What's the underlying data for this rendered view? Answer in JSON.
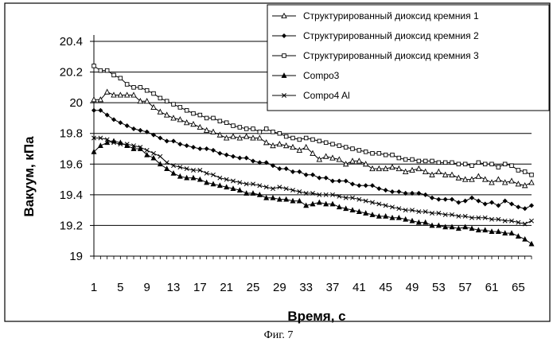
{
  "caption": "Фиг. 7",
  "chart_data": {
    "type": "line",
    "title": "",
    "xlabel": "Время, с",
    "ylabel": "Вакуум, кПа",
    "ylim": [
      19,
      20.4
    ],
    "yticks": [
      "19",
      "19.2",
      "19.4",
      "19.6",
      "19.8",
      "20",
      "20.2",
      "20.4"
    ],
    "xtick_labels": [
      "1",
      "5",
      "9",
      "13",
      "17",
      "21",
      "25",
      "29",
      "33",
      "37",
      "41",
      "45",
      "49",
      "53",
      "57",
      "61",
      "65"
    ],
    "grid": "horizontal",
    "legend_position": "top-right",
    "x": [
      1,
      2,
      3,
      4,
      5,
      6,
      7,
      8,
      9,
      10,
      11,
      12,
      13,
      14,
      15,
      16,
      17,
      18,
      19,
      20,
      21,
      22,
      23,
      24,
      25,
      26,
      27,
      28,
      29,
      30,
      31,
      32,
      33,
      34,
      35,
      36,
      37,
      38,
      39,
      40,
      41,
      42,
      43,
      44,
      45,
      46,
      47,
      48,
      49,
      50,
      51,
      52,
      53,
      54,
      55,
      56,
      57,
      58,
      59,
      60,
      61,
      62,
      63,
      64,
      65,
      66,
      67
    ],
    "series": [
      {
        "name": "Структурированный диоксид кремния 1",
        "marker": "triangle-open",
        "values": [
          20.02,
          20.02,
          20.07,
          20.05,
          20.05,
          20.05,
          20.05,
          20.01,
          20.01,
          19.97,
          19.94,
          19.92,
          19.9,
          19.89,
          19.87,
          19.86,
          19.84,
          19.82,
          19.81,
          19.79,
          19.77,
          19.78,
          19.77,
          19.78,
          19.77,
          19.77,
          19.74,
          19.72,
          19.73,
          19.72,
          19.71,
          19.69,
          19.71,
          19.67,
          19.63,
          19.65,
          19.64,
          19.63,
          19.6,
          19.62,
          19.62,
          19.6,
          19.57,
          19.57,
          19.57,
          19.58,
          19.57,
          19.55,
          19.56,
          19.57,
          19.55,
          19.53,
          19.55,
          19.53,
          19.53,
          19.51,
          19.5,
          19.5,
          19.52,
          19.5,
          19.48,
          19.5,
          19.48,
          19.49,
          19.47,
          19.46,
          19.48
        ]
      },
      {
        "name": "Структурированный диоксид кремния 2",
        "marker": "diamond",
        "values": [
          19.95,
          19.95,
          19.92,
          19.89,
          19.87,
          19.85,
          19.83,
          19.82,
          19.81,
          19.79,
          19.77,
          19.75,
          19.75,
          19.73,
          19.72,
          19.71,
          19.7,
          19.7,
          19.69,
          19.67,
          19.66,
          19.65,
          19.64,
          19.64,
          19.62,
          19.61,
          19.61,
          19.59,
          19.57,
          19.57,
          19.55,
          19.55,
          19.53,
          19.53,
          19.51,
          19.51,
          19.49,
          19.49,
          19.49,
          19.47,
          19.46,
          19.46,
          19.46,
          19.44,
          19.43,
          19.42,
          19.42,
          19.41,
          19.41,
          19.41,
          19.4,
          19.38,
          19.37,
          19.37,
          19.37,
          19.35,
          19.36,
          19.38,
          19.36,
          19.34,
          19.35,
          19.33,
          19.36,
          19.34,
          19.32,
          19.31,
          19.33
        ]
      },
      {
        "name": "Структурированный диоксид кремния 3",
        "marker": "square-open",
        "values": [
          20.24,
          20.21,
          20.21,
          20.18,
          20.16,
          20.12,
          20.1,
          20.1,
          20.08,
          20.06,
          20.03,
          20.01,
          19.99,
          19.97,
          19.95,
          19.93,
          19.92,
          19.9,
          19.9,
          19.88,
          19.87,
          19.85,
          19.84,
          19.83,
          19.83,
          19.81,
          19.83,
          19.81,
          19.8,
          19.78,
          19.77,
          19.76,
          19.77,
          19.76,
          19.75,
          19.74,
          19.73,
          19.72,
          19.71,
          19.7,
          19.69,
          19.68,
          19.67,
          19.67,
          19.66,
          19.66,
          19.64,
          19.63,
          19.63,
          19.62,
          19.62,
          19.62,
          19.61,
          19.61,
          19.61,
          19.6,
          19.6,
          19.59,
          19.61,
          19.6,
          19.6,
          19.58,
          19.6,
          19.59,
          19.56,
          19.55,
          19.53
        ]
      },
      {
        "name": "Compo3",
        "marker": "triangle",
        "values": [
          19.68,
          19.72,
          19.74,
          19.75,
          19.74,
          19.72,
          19.7,
          19.7,
          19.66,
          19.64,
          19.6,
          19.57,
          19.54,
          19.52,
          19.51,
          19.51,
          19.5,
          19.48,
          19.47,
          19.46,
          19.45,
          19.44,
          19.43,
          19.41,
          19.41,
          19.4,
          19.38,
          19.38,
          19.37,
          19.37,
          19.36,
          19.36,
          19.33,
          19.34,
          19.35,
          19.34,
          19.34,
          19.32,
          19.31,
          19.3,
          19.29,
          19.28,
          19.27,
          19.26,
          19.26,
          19.25,
          19.25,
          19.24,
          19.23,
          19.22,
          19.22,
          19.2,
          19.2,
          19.19,
          19.19,
          19.18,
          19.19,
          19.18,
          19.17,
          19.17,
          19.16,
          19.16,
          19.15,
          19.15,
          19.13,
          19.11,
          19.08
        ]
      },
      {
        "name": "Compo4 Al",
        "marker": "x",
        "values": [
          19.77,
          19.77,
          19.76,
          19.74,
          19.73,
          19.73,
          19.72,
          19.71,
          19.69,
          19.67,
          19.65,
          19.61,
          19.59,
          19.58,
          19.57,
          19.56,
          19.56,
          19.54,
          19.53,
          19.51,
          19.5,
          19.49,
          19.48,
          19.47,
          19.47,
          19.46,
          19.45,
          19.44,
          19.45,
          19.44,
          19.43,
          19.42,
          19.41,
          19.41,
          19.4,
          19.4,
          19.4,
          19.39,
          19.38,
          19.38,
          19.37,
          19.36,
          19.35,
          19.34,
          19.33,
          19.32,
          19.31,
          19.3,
          19.3,
          19.29,
          19.29,
          19.28,
          19.28,
          19.27,
          19.27,
          19.26,
          19.26,
          19.25,
          19.25,
          19.25,
          19.24,
          19.24,
          19.23,
          19.23,
          19.22,
          19.21,
          19.23
        ]
      }
    ]
  }
}
